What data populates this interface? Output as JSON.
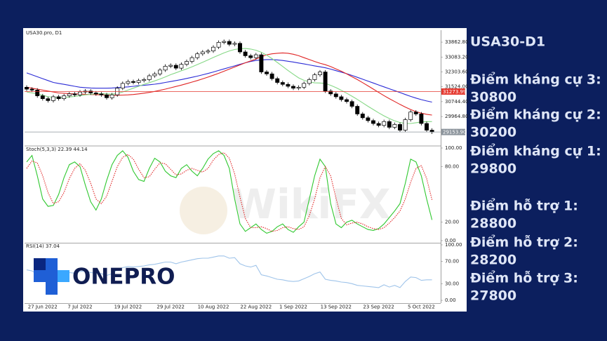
{
  "chart_data": [
    {
      "type": "candlestick",
      "title": "USA30.pro, D1",
      "categories": [
        null,
        null,
        null,
        "27 Jun 2022",
        null,
        null,
        null,
        null,
        null,
        null,
        "7 Jul 2022",
        null,
        null,
        null,
        null,
        null,
        null,
        null,
        null,
        "19 Jul 2022",
        null,
        null,
        null,
        null,
        null,
        null,
        null,
        "29 Jul 2022",
        null,
        null,
        null,
        null,
        null,
        null,
        null,
        "10 Aug 2022",
        null,
        null,
        null,
        null,
        null,
        null,
        null,
        "22 Aug 2022",
        null,
        null,
        null,
        null,
        null,
        null,
        "1 Sep 2022",
        null,
        null,
        null,
        null,
        null,
        null,
        null,
        "13 Sep 2022",
        null,
        null,
        null,
        null,
        null,
        null,
        null,
        "23 Sep 2022",
        null,
        null,
        null,
        null,
        null,
        null,
        null,
        "5 Oct 2022",
        null,
        null
      ],
      "open": [
        31500,
        31400,
        31350,
        31050,
        30900,
        30800,
        31000,
        30900,
        31050,
        31150,
        31100,
        31250,
        31300,
        31200,
        31150,
        31100,
        30950,
        31100,
        31450,
        31700,
        31800,
        31750,
        31850,
        31900,
        32100,
        32200,
        32400,
        32600,
        32650,
        32500,
        32700,
        32850,
        33050,
        33250,
        33350,
        33400,
        33600,
        33850,
        33900,
        33750,
        33800,
        33350,
        33150,
        33050,
        33200,
        32300,
        32200,
        31950,
        31750,
        31650,
        31550,
        31450,
        31500,
        31700,
        31900,
        32150,
        32300,
        31300,
        31150,
        31000,
        30850,
        30750,
        30500,
        30100,
        29900,
        29750,
        29600,
        29500,
        29700,
        29400,
        29550,
        29250,
        29800,
        30200,
        30100,
        29600,
        29250
      ],
      "high": [
        31600,
        31500,
        31450,
        31150,
        31000,
        31100,
        31100,
        31150,
        31250,
        31250,
        31350,
        31400,
        31400,
        31300,
        31250,
        31200,
        31200,
        31550,
        31800,
        31900,
        31900,
        31950,
        32000,
        32200,
        32300,
        32500,
        32700,
        32750,
        32750,
        32800,
        32950,
        33150,
        33350,
        33450,
        33500,
        33700,
        33950,
        34000,
        34000,
        33900,
        33900,
        33450,
        33250,
        33300,
        33300,
        32400,
        32300,
        32050,
        31850,
        31750,
        31650,
        31600,
        31800,
        32000,
        32250,
        32400,
        32400,
        31400,
        31250,
        31100,
        30950,
        30850,
        30600,
        30200,
        30000,
        29850,
        29700,
        29800,
        29800,
        29650,
        29650,
        29900,
        30300,
        30300,
        30200,
        29700,
        29350
      ],
      "low": [
        31300,
        31250,
        30950,
        30800,
        30700,
        30700,
        30800,
        30800,
        30950,
        31000,
        31000,
        31150,
        31100,
        31050,
        31000,
        30850,
        30850,
        31000,
        31350,
        31600,
        31650,
        31650,
        31750,
        31800,
        32000,
        32100,
        32300,
        32500,
        32400,
        32400,
        32600,
        32750,
        32950,
        33150,
        33250,
        33300,
        33500,
        33750,
        33650,
        33650,
        33250,
        33050,
        32950,
        32950,
        32200,
        32100,
        31850,
        31650,
        31550,
        31450,
        31350,
        31350,
        31400,
        31600,
        31800,
        32050,
        31200,
        31050,
        30900,
        30750,
        30650,
        30400,
        30000,
        29800,
        29650,
        29500,
        29400,
        29400,
        29300,
        29300,
        29150,
        29150,
        29700,
        30000,
        29500,
        29150,
        29050
      ],
      "close": [
        31400,
        31350,
        31050,
        30900,
        30800,
        31000,
        30900,
        31050,
        31150,
        31100,
        31250,
        31300,
        31200,
        31150,
        31100,
        30950,
        31100,
        31450,
        31700,
        31800,
        31750,
        31850,
        31900,
        32100,
        32200,
        32400,
        32600,
        32650,
        32500,
        32700,
        32850,
        33050,
        33250,
        33350,
        33400,
        33600,
        33850,
        33900,
        33750,
        33800,
        33350,
        33150,
        33050,
        33200,
        32300,
        32200,
        31950,
        31750,
        31650,
        31550,
        31450,
        31500,
        31700,
        31900,
        32150,
        32300,
        31300,
        31150,
        31000,
        30850,
        30750,
        30500,
        30100,
        29900,
        29750,
        29600,
        29500,
        29700,
        29400,
        29550,
        29250,
        29800,
        30200,
        30100,
        29600,
        29250,
        29150
      ],
      "up_color": "#ffffff",
      "down_color": "#000000",
      "series": [
        {
          "color": "#2b2bd6",
          "values": [
            32250,
            32150,
            32050,
            31950,
            31850,
            31750,
            31700,
            31650,
            31600,
            31550,
            31500,
            31480,
            31460,
            31450,
            31450,
            31450,
            31460,
            31480,
            31500,
            31520,
            31550,
            31580,
            31600,
            31630,
            31660,
            31700,
            31750,
            31800,
            31850,
            31900,
            31960,
            32020,
            32080,
            32150,
            32220,
            32300,
            32380,
            32460,
            32540,
            32620,
            32700,
            32780,
            32850,
            32900,
            32930,
            32950,
            32950,
            32930,
            32900,
            32860,
            32820,
            32770,
            32720,
            32670,
            32620,
            32570,
            32520,
            32450,
            32370,
            32290,
            32210,
            32120,
            32020,
            31920,
            31820,
            31720,
            31620,
            31520,
            31420,
            31320,
            31220,
            31120,
            31020,
            30930,
            30850,
            30780,
            30720
          ]
        },
        {
          "color": "#e02424",
          "values": [
            31500,
            31450,
            31400,
            31350,
            31300,
            31250,
            31200,
            31180,
            31160,
            31150,
            31140,
            31130,
            31120,
            31110,
            31100,
            31090,
            31080,
            31080,
            31090,
            31100,
            31120,
            31150,
            31190,
            31230,
            31280,
            31340,
            31400,
            31470,
            31540,
            31610,
            31690,
            31770,
            31850,
            31940,
            32030,
            32130,
            32230,
            32340,
            32450,
            32560,
            32670,
            32780,
            32880,
            32980,
            33100,
            33200,
            33250,
            33280,
            33300,
            33280,
            33230,
            33150,
            33050,
            32950,
            32850,
            32760,
            32680,
            32580,
            32460,
            32340,
            32200,
            32050,
            31900,
            31740,
            31570,
            31400,
            31230,
            31060,
            30900,
            30750,
            30600,
            30460,
            30330,
            30220,
            30140,
            30080,
            30040
          ]
        },
        {
          "color": "#86d886",
          "values": [
            31250,
            31200,
            31150,
            31080,
            31000,
            30970,
            30950,
            30960,
            30990,
            31020,
            31060,
            31100,
            31130,
            31150,
            31160,
            31150,
            31140,
            31170,
            31250,
            31350,
            31450,
            31550,
            31650,
            31740,
            31830,
            31930,
            32040,
            32160,
            32260,
            32360,
            32460,
            32570,
            32690,
            32810,
            32930,
            33060,
            33180,
            33300,
            33400,
            33480,
            33520,
            33530,
            33500,
            33440,
            33330,
            33180,
            33000,
            32800,
            32590,
            32380,
            32180,
            31990,
            31860,
            31780,
            31730,
            31720,
            31700,
            31600,
            31480,
            31340,
            31190,
            31030,
            30860,
            30680,
            30500,
            30330,
            30160,
            30000,
            29860,
            29740,
            29650,
            29600,
            29600,
            29640,
            29680,
            29700,
            29700
          ]
        }
      ],
      "price_lines": [
        {
          "value": 31273.99,
          "color": "#e5392f"
        },
        {
          "value": {
            "value": 29153.9,
            "label": "29153.90"
          },
          "color": "#8c949c"
        }
      ],
      "ylim": [
        28460,
        34490
      ],
      "yticks": [
        {
          "value": 33862.8,
          "label": "33862.80"
        },
        {
          "value": 33083.2,
          "label": "33083.20"
        },
        {
          "value": 32303.6,
          "label": "32303.60"
        },
        {
          "value": 31524,
          "label": "31524.00"
        },
        {
          "value": 30744.4,
          "label": "30744.40"
        },
        {
          "value": 29964.8,
          "label": "29964.80"
        }
      ]
    },
    {
      "type": "line",
      "title": "Stoch(5,3,3) 22.39 44.14",
      "series": [
        {
          "color": "#2fc82f",
          "style": "solid",
          "values": [
            85,
            92,
            70,
            45,
            37,
            38,
            50,
            68,
            82,
            85,
            80,
            60,
            42,
            33,
            45,
            65,
            82,
            92,
            97,
            90,
            75,
            66,
            64,
            78,
            89,
            85,
            75,
            70,
            68,
            78,
            82,
            75,
            70,
            78,
            88,
            94,
            97,
            92,
            78,
            45,
            18,
            10,
            14,
            18,
            12,
            8,
            10,
            15,
            18,
            12,
            9,
            15,
            20,
            45,
            70,
            88,
            80,
            40,
            18,
            14,
            20,
            22,
            18,
            15,
            12,
            11,
            13,
            18,
            25,
            32,
            40,
            62,
            88,
            85,
            70,
            45,
            22.39
          ]
        },
        {
          "color": "#e02424",
          "style": "dotted",
          "values": [
            78,
            86,
            84,
            70,
            52,
            40,
            42,
            52,
            67,
            78,
            83,
            76,
            62,
            45,
            40,
            48,
            64,
            80,
            90,
            93,
            88,
            77,
            68,
            69,
            77,
            84,
            83,
            77,
            71,
            72,
            76,
            78,
            76,
            74,
            78,
            87,
            93,
            95,
            89,
            72,
            47,
            24,
            14,
            14,
            15,
            13,
            10,
            11,
            14,
            15,
            13,
            12,
            15,
            27,
            45,
            68,
            80,
            70,
            46,
            24,
            17,
            19,
            20,
            18,
            15,
            13,
            12,
            14,
            19,
            25,
            32,
            45,
            63,
            78,
            81,
            67,
            44.14
          ]
        }
      ],
      "ylim": [
        -2.3,
        101.5
      ],
      "yticks": [
        {
          "value": 100,
          "label": "100.00"
        },
        {
          "value": 80,
          "label": "80.00"
        },
        {
          "value": 20,
          "label": "20.00"
        },
        {
          "value": 0,
          "label": "0.00"
        }
      ]
    },
    {
      "type": "line",
      "title": "RSI(14) 37.04",
      "series": [
        {
          "color": "#9fc4ea",
          "style": "solid",
          "values": [
            55,
            53,
            47,
            45,
            43,
            47,
            45,
            48,
            50,
            49,
            52,
            53,
            50,
            49,
            48,
            45,
            48,
            55,
            59,
            61,
            60,
            61,
            62,
            64,
            65,
            67,
            69,
            69,
            66,
            69,
            71,
            73,
            75,
            76,
            76,
            78,
            80,
            80,
            76,
            77,
            66,
            62,
            60,
            63,
            46,
            44,
            41,
            38,
            37,
            35,
            34,
            35,
            39,
            43,
            48,
            51,
            38,
            36,
            35,
            33,
            32,
            30,
            27,
            26,
            25,
            24,
            23,
            28,
            24,
            27,
            23,
            34,
            42,
            41,
            36,
            37,
            37.04
          ]
        }
      ],
      "ylim": [
        -5,
        102.5
      ],
      "yticks": [
        {
          "value": 100,
          "label": "100.00"
        },
        {
          "value": 70,
          "label": "70.00"
        },
        {
          "value": 30,
          "label": "30.00"
        },
        {
          "value": 0,
          "label": "0.00"
        }
      ]
    }
  ],
  "logo": "ONEPRO",
  "watermark": "WikiFX",
  "side_panel": {
    "title": "USA30-D1",
    "levels": [
      {
        "label": "Điểm kháng cự 3:",
        "value": 30800
      },
      {
        "label": "Điểm kháng cự 2:",
        "value": 30200
      },
      {
        "label": "Điểm kháng cự 1:",
        "value": 29800
      },
      {
        "label": "Điểm hỗ trợ 1:",
        "value": 28800
      },
      {
        "label": "Điểm hỗ trợ 2:",
        "value": 28200
      },
      {
        "label": "Điểm hỗ trợ 3:",
        "value": 27800
      }
    ]
  }
}
